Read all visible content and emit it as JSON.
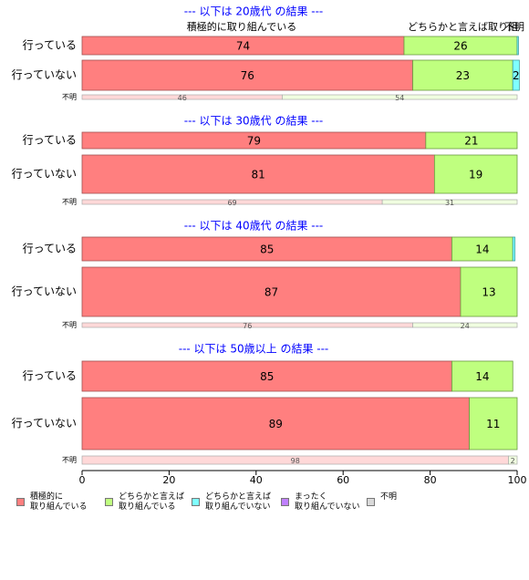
{
  "chart_data": {
    "type": "bar",
    "orientation": "horizontal",
    "stacked": true,
    "xlim": [
      0,
      100
    ],
    "x_ticks": [
      "0",
      "20",
      "40",
      "60",
      "80",
      "100"
    ],
    "header_labels": [
      "積極的に取り組んでいる",
      "どちらかと言えば取り組",
      "不明"
    ],
    "legend_position": "bottom",
    "legend": [
      {
        "label": "積極的に\n取り組んでいる",
        "color": "#ff7f7f"
      },
      {
        "label": "どちらかと言えば\n取り組んでいる",
        "color": "#bfff7f"
      },
      {
        "label": "どちらかと言えば\n取り組んでいない",
        "color": "#7fffff"
      },
      {
        "label": "まったく\n取り組んでいない",
        "color": "#bf7fff"
      },
      {
        "label": "不明",
        "color": "#d9d9d9"
      }
    ],
    "colors": {
      "active": "#ff7f7f",
      "somewhat": "#bfff7f",
      "somewhat_not": "#7fffff",
      "none": "#bf7fff",
      "unknown": "#d9d9d9",
      "unknown_row_1": "#ffd8d8",
      "unknown_row_2": "#f0ffe0",
      "section_title": "#0000ff"
    },
    "panels": [
      {
        "title": "--- 以下は 20歳代 の結果 ---",
        "rows": [
          {
            "label": "行っている",
            "values": [
              74,
              26,
              0.3,
              0,
              0
            ],
            "labels": [
              "74",
              "26",
              "",
              "",
              ""
            ]
          },
          {
            "label": "行っていない",
            "values": [
              76,
              23,
              1.5,
              0,
              0
            ],
            "labels": [
              "76",
              "23",
              "2",
              "",
              ""
            ]
          }
        ],
        "unknown": {
          "label": "不明",
          "values": [
            46,
            54
          ],
          "labels": [
            "46",
            "54"
          ]
        }
      },
      {
        "title": "--- 以下は 30歳代 の結果 ---",
        "rows": [
          {
            "label": "行っている",
            "values": [
              79,
              21,
              0,
              0,
              0
            ],
            "labels": [
              "79",
              "21",
              "",
              "",
              ""
            ]
          },
          {
            "label": "行っていない",
            "values": [
              81,
              19,
              0,
              0,
              0
            ],
            "labels": [
              "81",
              "19",
              "",
              "",
              ""
            ]
          }
        ],
        "unknown": {
          "label": "不明",
          "values": [
            69,
            31
          ],
          "labels": [
            "69",
            "31"
          ]
        }
      },
      {
        "title": "--- 以下は 40歳代 の結果 ---",
        "rows": [
          {
            "label": "行っている",
            "values": [
              85,
              14,
              0.5,
              0,
              0
            ],
            "labels": [
              "85",
              "14",
              "",
              "",
              ""
            ]
          },
          {
            "label": "行っていない",
            "values": [
              87,
              13,
              0,
              0,
              0
            ],
            "labels": [
              "87",
              "13",
              "",
              "",
              ""
            ]
          }
        ],
        "unknown": {
          "label": "不明",
          "values": [
            76,
            24
          ],
          "labels": [
            "76",
            "24"
          ]
        }
      },
      {
        "title": "--- 以下は 50歳以上 の結果 ---",
        "rows": [
          {
            "label": "行っている",
            "values": [
              85,
              14,
              0,
              0,
              0
            ],
            "labels": [
              "85",
              "14",
              "",
              "",
              ""
            ]
          },
          {
            "label": "行っていない",
            "values": [
              89,
              11,
              0,
              0,
              0
            ],
            "labels": [
              "89",
              "11",
              "",
              "",
              ""
            ]
          }
        ],
        "unknown": {
          "label": "不明",
          "values": [
            98,
            2
          ],
          "labels": [
            "98",
            "2"
          ]
        }
      }
    ]
  }
}
